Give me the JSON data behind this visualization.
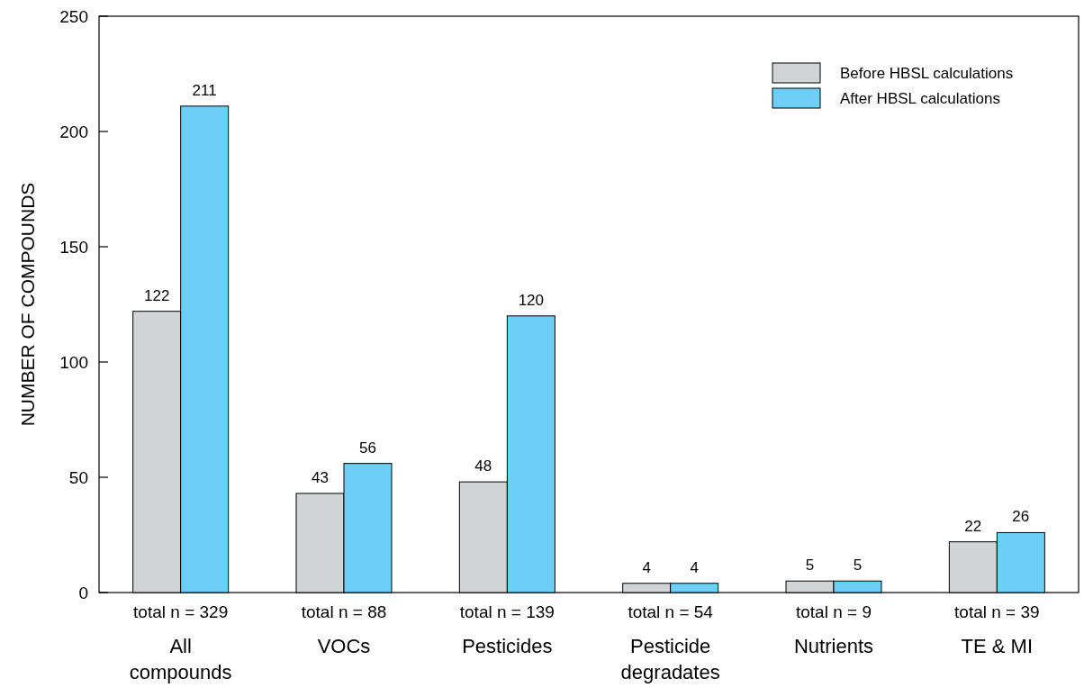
{
  "chart_data": {
    "type": "bar",
    "ylabel": "NUMBER OF COMPOUNDS",
    "categories": [
      "All compounds",
      "VOCs",
      "Pesticides",
      "Pesticide degradates",
      "Nutrients",
      "TE & MI"
    ],
    "series": [
      {
        "name": "Before HBSL calculations",
        "color": "#d1d3d4",
        "values": [
          122,
          43,
          48,
          4,
          5,
          22
        ]
      },
      {
        "name": "After HBSL calculations",
        "color": "#6dcff6",
        "values": [
          211,
          56,
          120,
          4,
          5,
          26
        ]
      }
    ],
    "ylim": [
      0,
      250
    ],
    "yticks": [
      0,
      50,
      100,
      150,
      200,
      250
    ],
    "data_labels": true,
    "legend": "top right",
    "grid": false,
    "annotations": [
      "total n = 329",
      "total n = 88",
      "total n = 139",
      "total n = 54",
      "total n = 9",
      "total n = 39"
    ]
  }
}
